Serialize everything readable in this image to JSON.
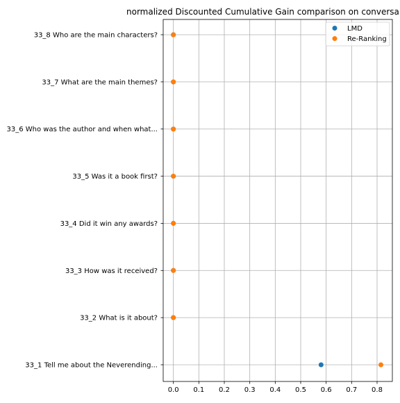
{
  "chart_data": {
    "type": "scatter",
    "title": "normalized Discounted Cumulative Gain comparison on conversa",
    "xlabel": "",
    "ylabel": "",
    "xlim": [
      -0.04,
      0.86
    ],
    "xticks": [
      0.0,
      0.1,
      0.2,
      0.3,
      0.4,
      0.5,
      0.6,
      0.7,
      0.8
    ],
    "xtick_labels": [
      "0.0",
      "0.1",
      "0.2",
      "0.3",
      "0.4",
      "0.5",
      "0.6",
      "0.7",
      "0.8"
    ],
    "categories": [
      "33_1 Tell me about the Neverending...",
      "33_2 What is it about?",
      "33_3 How was it received?",
      "33_4 Did it win any awards?",
      "33_5 Was it a book first?",
      "33_6 Who was the author and when what...",
      "33_7 What are the main themes?",
      "33_8 Who are the main characters?"
    ],
    "grid": true,
    "legend_position": "top-right",
    "series": [
      {
        "name": "LMD",
        "color": "#1f77b4",
        "values": [
          0.58,
          0.0,
          0.0,
          0.0,
          0.0,
          0.0,
          0.0,
          0.0
        ]
      },
      {
        "name": "Re-Ranking",
        "color": "#ff7f0e",
        "values": [
          0.815,
          0.0,
          0.0,
          0.0,
          0.0,
          0.0,
          0.0,
          0.0
        ]
      }
    ]
  }
}
